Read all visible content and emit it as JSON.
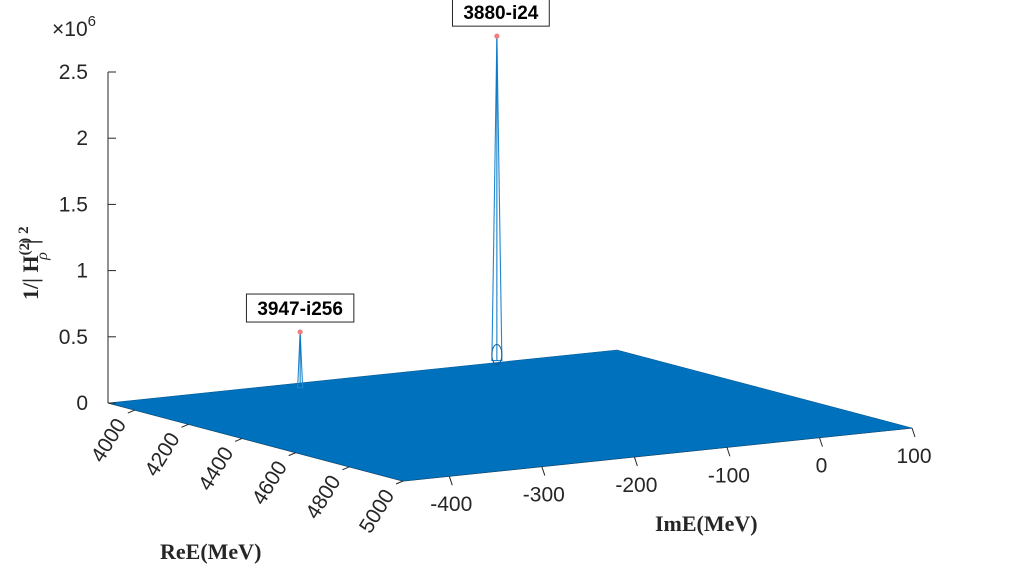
{
  "chart_data": {
    "type": "surface",
    "title": "",
    "exponent_label": "×10",
    "exponent_power": "6",
    "xlabel": "ImE(MeV)",
    "ylabel": "ReE(MeV)",
    "zlabel_main": "1/| H",
    "zlabel_sup": "(2)",
    "zlabel_sub": "ρ",
    "zlabel_tail": "| ",
    "zlabel_power": "2",
    "x_ticks": [
      -400,
      -300,
      -200,
      -100,
      0,
      100
    ],
    "x_tick_labels": [
      "-400",
      "-300",
      "-200",
      "-100",
      "0",
      "100"
    ],
    "y_ticks": [
      4000,
      4200,
      4400,
      4600,
      4800,
      5000
    ],
    "y_tick_labels": [
      "4000",
      "4200",
      "4400",
      "4600",
      "4800",
      "5000"
    ],
    "z_ticks": [
      0,
      0.5,
      1,
      1.5,
      2,
      2.5
    ],
    "z_tick_labels": [
      "0",
      "0.5",
      "1",
      "1.5",
      "2",
      "2.5"
    ],
    "xlim": [
      -450,
      100
    ],
    "ylim": [
      3900,
      5000
    ],
    "zlim_scaled": [
      0,
      2.5
    ],
    "z_scale": 1000000,
    "surface_color": "#0072BD",
    "peak_marker_color": "#F08080",
    "peaks": [
      {
        "label": "3880-i24",
        "re": 3880,
        "im": -24,
        "height_scaled": 2.45
      },
      {
        "label": "3947-i256",
        "re": 3947,
        "im": -256,
        "height_scaled": 0.42
      }
    ]
  }
}
